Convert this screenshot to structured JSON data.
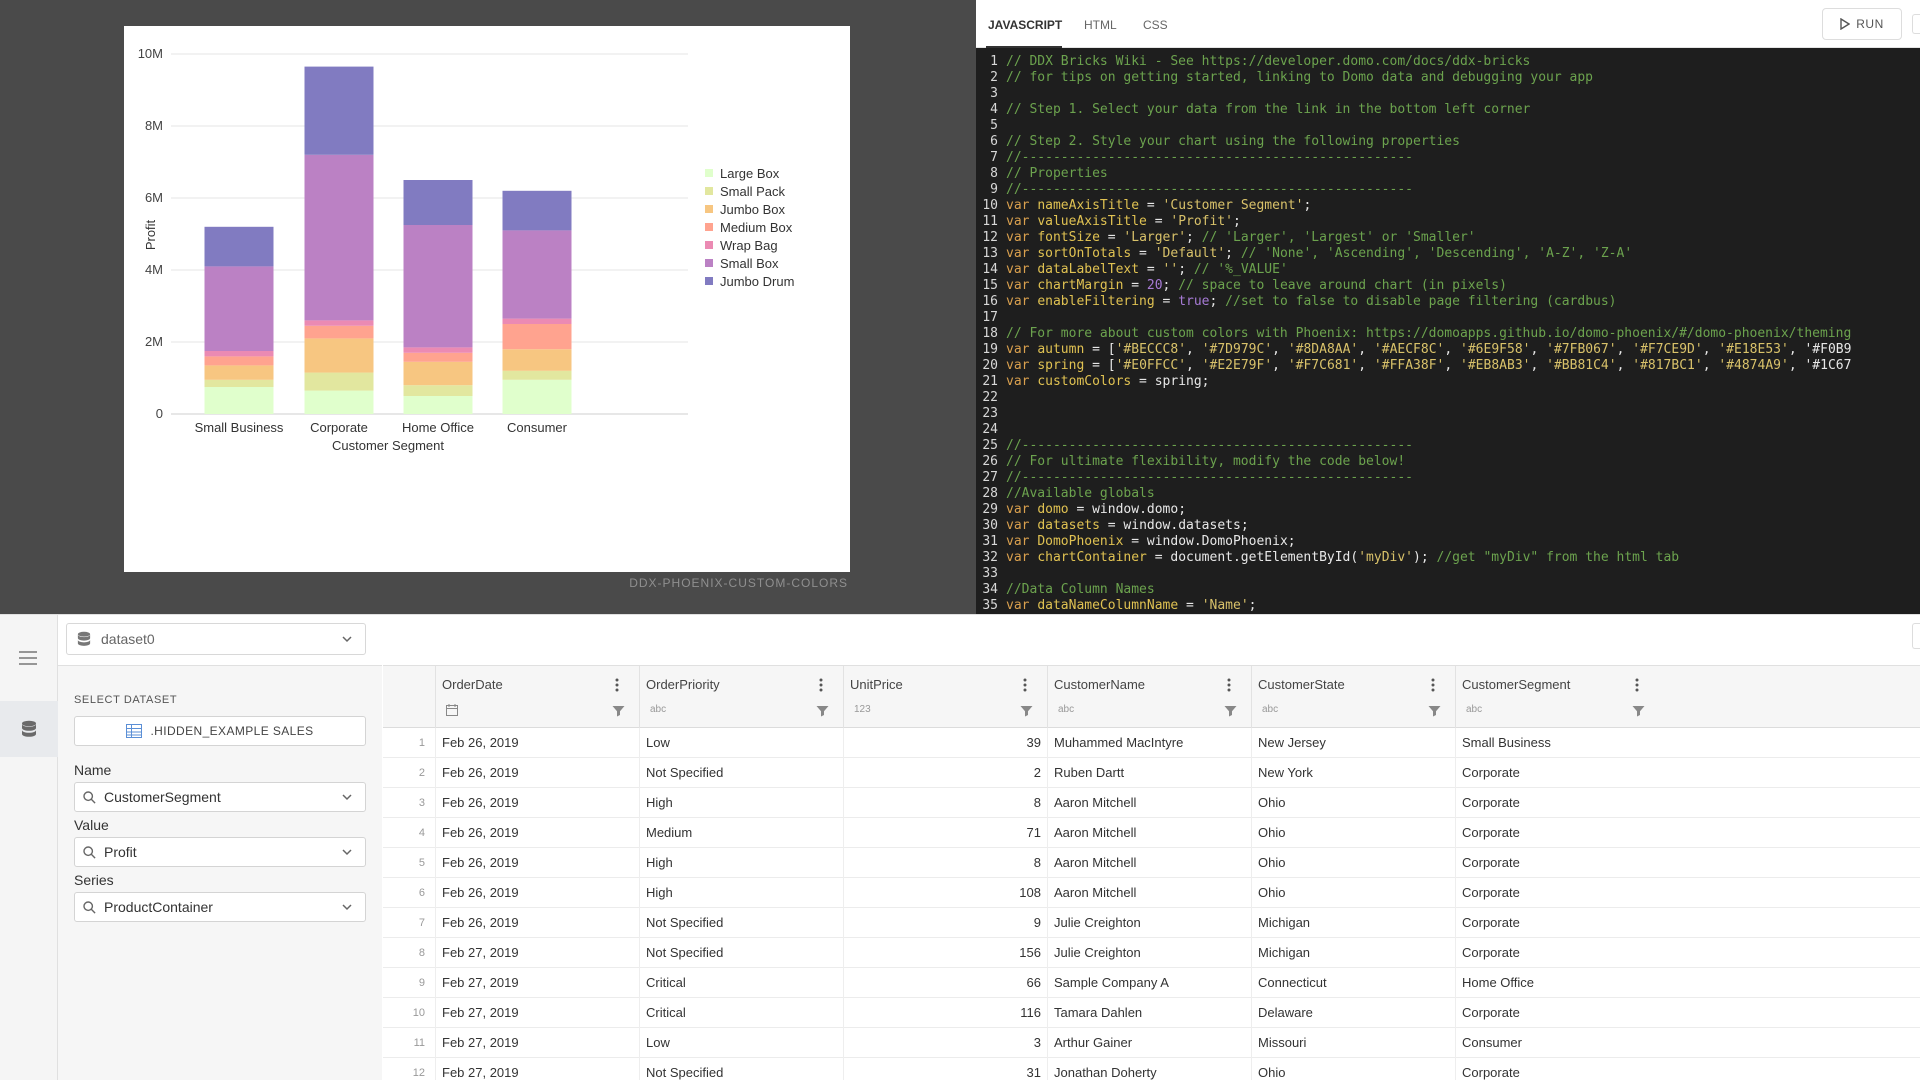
{
  "chart": {
    "brick_label": "DDX-PHOENIX-CUSTOM-COLORS"
  },
  "chart_data": {
    "type": "bar",
    "stacked": true,
    "categories": [
      "Small Business",
      "Corporate",
      "Home Office",
      "Consumer"
    ],
    "xlabel": "Customer Segment",
    "ylabel": "Profit",
    "ylim": [
      0,
      10000000
    ],
    "y_ticks": [
      0,
      2000000,
      4000000,
      6000000,
      8000000,
      10000000
    ],
    "y_tick_labels": [
      "0",
      "2M",
      "4M",
      "6M",
      "8M",
      "10M"
    ],
    "grid": true,
    "legend_position": "right",
    "series": [
      {
        "name": "Large Box",
        "color": "#E0FFCC",
        "values": [
          750000,
          650000,
          500000,
          950000
        ]
      },
      {
        "name": "Small Pack",
        "color": "#E2E79F",
        "values": [
          200000,
          500000,
          300000,
          250000
        ]
      },
      {
        "name": "Jumbo Box",
        "color": "#F7C681",
        "values": [
          400000,
          950000,
          650000,
          600000
        ]
      },
      {
        "name": "Medium Box",
        "color": "#FFA38F",
        "values": [
          250000,
          350000,
          250000,
          700000
        ]
      },
      {
        "name": "Wrap Bag",
        "color": "#EB8AB3",
        "values": [
          150000,
          150000,
          150000,
          150000
        ]
      },
      {
        "name": "Small Box",
        "color": "#BB81C4",
        "values": [
          2350000,
          4600000,
          3400000,
          2450000
        ]
      },
      {
        "name": "Jumbo Drum",
        "color": "#817BC1",
        "values": [
          1100000,
          2450000,
          1250000,
          1100000
        ]
      }
    ]
  },
  "editor": {
    "tabs": [
      "JAVASCRIPT",
      "HTML",
      "CSS"
    ],
    "run_label": "RUN",
    "code_lines": [
      "// DDX Bricks Wiki - See https://developer.domo.com/docs/ddx-bricks",
      "// for tips on getting started, linking to Domo data and debugging your app",
      "",
      "// Step 1. Select your data from the link in the bottom left corner",
      "",
      "// Step 2. Style your chart using the following properties",
      "//--------------------------------------------------",
      "// Properties",
      "//--------------------------------------------------",
      "var nameAxisTitle = 'Customer Segment';",
      "var valueAxisTitle = 'Profit';",
      "var fontSize = 'Larger'; // 'Larger', 'Largest' or 'Smaller'",
      "var sortOnTotals = 'Default'; // 'None', 'Ascending', 'Descending', 'A-Z', 'Z-A'",
      "var dataLabelText = ''; // '%_VALUE'",
      "var chartMargin = 20; // space to leave around chart (in pixels)",
      "var enableFiltering = true; //set to false to disable page filtering (cardbus)",
      "",
      "// For more about custom colors with Phoenix: https://domoapps.github.io/domo-phoenix/#/domo-phoenix/theming",
      "var autumn = ['#BECCC8', '#7D979C', '#8DA8AA', '#AECF8C', '#6E9F58', '#7FB067', '#F7CE9D', '#E18E53', '#F0B9",
      "var spring = ['#E0FFCC', '#E2E79F', '#F7C681', '#FFA38F', '#EB8AB3', '#BB81C4', '#817BC1', '#4874A9', '#1C67",
      "var customColors = spring;",
      "",
      "",
      "",
      "//--------------------------------------------------",
      "// For ultimate flexibility, modify the code below!",
      "//--------------------------------------------------",
      "//Available globals",
      "var domo = window.domo;",
      "var datasets = window.datasets;",
      "var DomoPhoenix = window.DomoPhoenix;",
      "var chartContainer = document.getElementById('myDiv'); //get \"myDiv\" from the html tab",
      "",
      "//Data Column Names",
      "var dataNameColumnName = 'Name';"
    ]
  },
  "data_panel": {
    "dataset_selector": "dataset0",
    "select_dataset_title": "SELECT DATASET",
    "dataset_name": ".HIDDEN_EXAMPLE SALES",
    "fields": [
      {
        "label": "Name",
        "value": "CustomerSegment"
      },
      {
        "label": "Value",
        "value": "Profit"
      },
      {
        "label": "Series",
        "value": "ProductContainer"
      }
    ]
  },
  "table": {
    "columns": [
      {
        "name": "OrderDate",
        "type": "date"
      },
      {
        "name": "OrderPriority",
        "type": "abc"
      },
      {
        "name": "UnitPrice",
        "type": "123"
      },
      {
        "name": "CustomerName",
        "type": "abc"
      },
      {
        "name": "CustomerState",
        "type": "abc"
      },
      {
        "name": "CustomerSegment",
        "type": "abc"
      }
    ],
    "rows": [
      [
        "1",
        "Feb 26, 2019",
        "Low",
        "39",
        "Muhammed MacIntyre",
        "New Jersey",
        "Small Business"
      ],
      [
        "2",
        "Feb 26, 2019",
        "Not Specified",
        "2",
        "Ruben Dartt",
        "New York",
        "Corporate"
      ],
      [
        "3",
        "Feb 26, 2019",
        "High",
        "8",
        "Aaron Mitchell",
        "Ohio",
        "Corporate"
      ],
      [
        "4",
        "Feb 26, 2019",
        "Medium",
        "71",
        "Aaron Mitchell",
        "Ohio",
        "Corporate"
      ],
      [
        "5",
        "Feb 26, 2019",
        "High",
        "8",
        "Aaron Mitchell",
        "Ohio",
        "Corporate"
      ],
      [
        "6",
        "Feb 26, 2019",
        "High",
        "108",
        "Aaron Mitchell",
        "Ohio",
        "Corporate"
      ],
      [
        "7",
        "Feb 26, 2019",
        "Not Specified",
        "9",
        "Julie Creighton",
        "Michigan",
        "Corporate"
      ],
      [
        "8",
        "Feb 27, 2019",
        "Not Specified",
        "156",
        "Julie Creighton",
        "Michigan",
        "Corporate"
      ],
      [
        "9",
        "Feb 27, 2019",
        "Critical",
        "66",
        "Sample Company A",
        "Connecticut",
        "Home Office"
      ],
      [
        "10",
        "Feb 27, 2019",
        "Critical",
        "116",
        "Tamara Dahlen",
        "Delaware",
        "Corporate"
      ],
      [
        "11",
        "Feb 27, 2019",
        "Low",
        "3",
        "Arthur Gainer",
        "Missouri",
        "Consumer"
      ],
      [
        "12",
        "Feb 27, 2019",
        "Not Specified",
        "31",
        "Jonathan Doherty",
        "Ohio",
        "Corporate"
      ]
    ]
  }
}
